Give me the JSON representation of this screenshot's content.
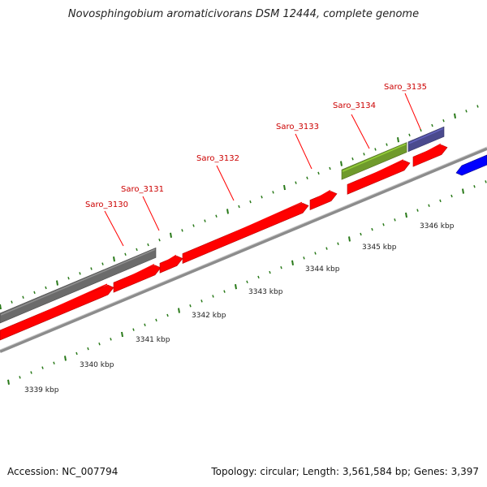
{
  "title": "Novosphingobium aromaticivorans DSM 12444, complete genome",
  "footer": {
    "accession": "Accession: NC_007794",
    "summary": "Topology: circular; Length: 3,561,584 bp; Genes: 3,397"
  },
  "colors": {
    "cds": "#ff0000",
    "label": "#cc0000",
    "tick": "#2a7a1a",
    "backbone": "#8c8c8c",
    "gray_feature": "#6b6b6b",
    "olive_feature": "#6f9a2c",
    "purple_feature": "#4a4a8e",
    "blue_feature": "#0000ff"
  },
  "scale": {
    "unit": "kbp",
    "ticks": [
      {
        "value": 3339,
        "label": "3339 kbp"
      },
      {
        "value": 3340,
        "label": "3340 kbp"
      },
      {
        "value": 3341,
        "label": "3341 kbp"
      },
      {
        "value": 3342,
        "label": "3342 kbp"
      },
      {
        "value": 3343,
        "label": "3343 kbp"
      },
      {
        "value": 3344,
        "label": "3344 kbp"
      },
      {
        "value": 3345,
        "label": "3345 kbp"
      },
      {
        "value": 3346,
        "label": "3346 kbp"
      }
    ]
  },
  "gene_labels": [
    "Saro_3130",
    "Saro_3131",
    "Saro_3132",
    "Saro_3133",
    "Saro_3134",
    "Saro_3135"
  ]
}
